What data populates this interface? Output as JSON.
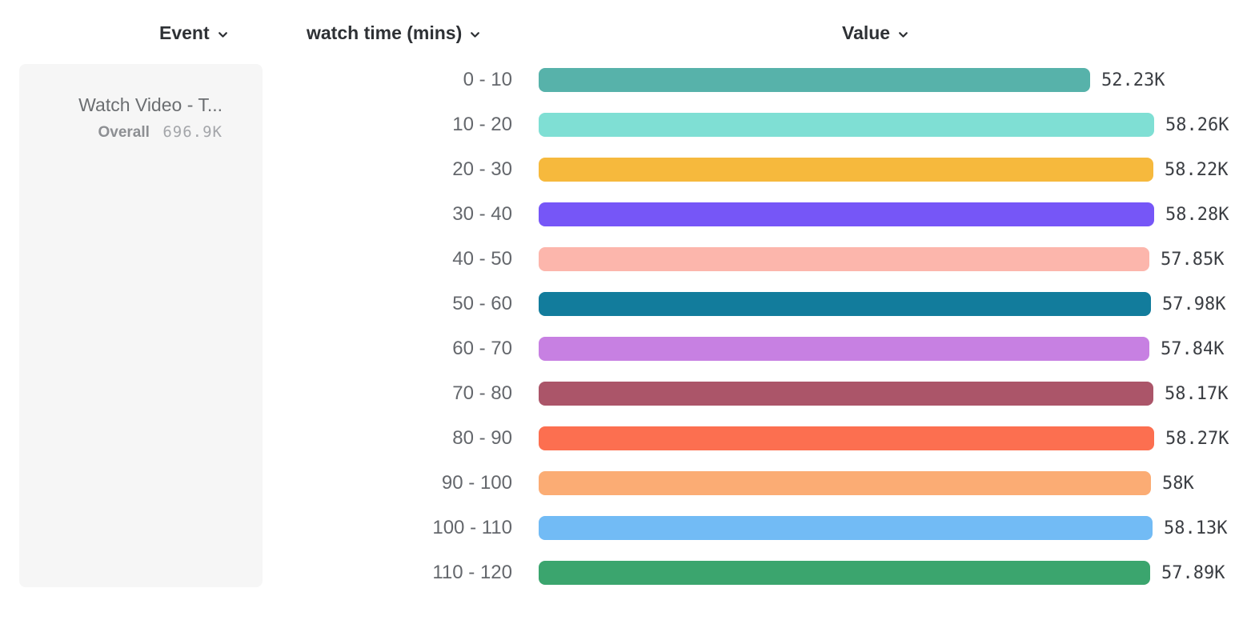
{
  "columns": {
    "event": {
      "label": "Event"
    },
    "bucket": {
      "label": "watch time (mins)"
    },
    "value": {
      "label": "Value"
    }
  },
  "event_card": {
    "title": "Watch Video - T...",
    "overall_label": "Overall",
    "overall_value": "696.9K"
  },
  "chart_data": {
    "type": "bar",
    "orientation": "horizontal",
    "title": "",
    "xlabel": "Value",
    "ylabel": "watch time (mins)",
    "xlim": [
      0,
      58280
    ],
    "grid": false,
    "legend": "none",
    "categories": [
      "0 - 10",
      "10 - 20",
      "20 - 30",
      "30 - 40",
      "40 - 50",
      "50 - 60",
      "60 - 70",
      "70 - 80",
      "80 - 90",
      "90 - 100",
      "100 - 110",
      "110 - 120"
    ],
    "values": [
      52230,
      58260,
      58220,
      58280,
      57850,
      57980,
      57840,
      58170,
      58270,
      58000,
      58130,
      57890
    ],
    "value_labels": [
      "52.23K",
      "58.26K",
      "58.22K",
      "58.28K",
      "57.85K",
      "57.98K",
      "57.84K",
      "58.17K",
      "58.27K",
      "58K",
      "58.13K",
      "57.89K"
    ],
    "colors": [
      "#57b2aa",
      "#7fdfd4",
      "#f6b93d",
      "#7656f7",
      "#fcb6ac",
      "#127c9c",
      "#c780e2",
      "#ab5569",
      "#fc6f50",
      "#fbac74",
      "#72bbf5",
      "#3ba56e"
    ]
  }
}
